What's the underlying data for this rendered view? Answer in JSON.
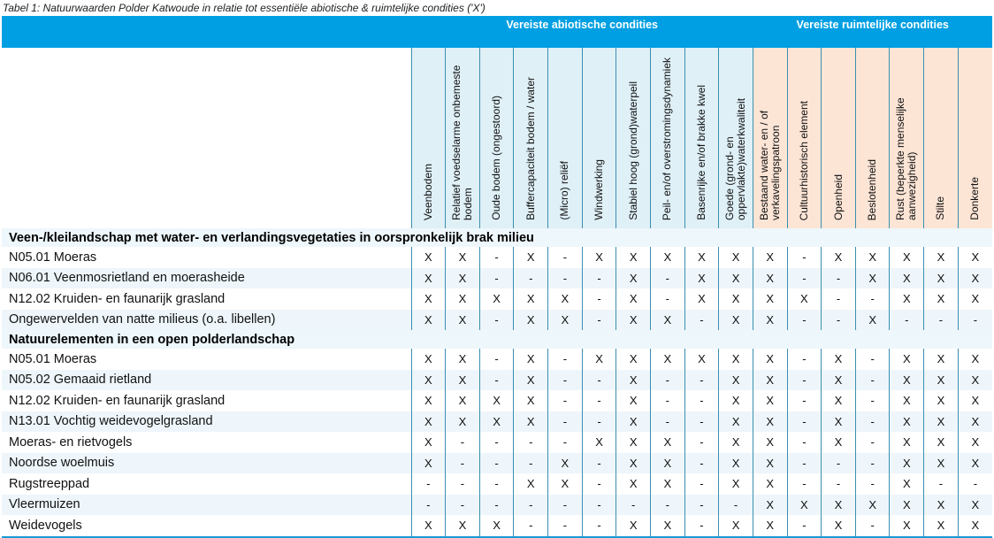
{
  "caption": "Tabel 1: Natuurwaarden Polder Katwoude in relatie tot essentiële abiotische & ruimtelijke condities ('X')",
  "colors": {
    "header_band": "#009fe3",
    "abiotic_header": "#dff0f7",
    "spatial_header": "#fde5d6",
    "row_alt": "#eef6fb"
  },
  "groups_header": {
    "abiotic": "Vereiste abiotische condities",
    "spatial": "Vereiste ruimtelijke condities"
  },
  "columns_abiotic": [
    "Veenbodem",
    "Relatief voedselarme onbemeste bodem",
    "Oude bodem (ongestoord)",
    "Buffercapaciteit bodem / water",
    "(Micro) reliëf",
    "Windwerking",
    "Stabiel hoog (grond)waterpeil",
    "Peil- en/of overstromingsdynamiek",
    "Basenrijke en/of brakke kwel",
    "Goede (grond- en oppervlakte)waterkwaliteit"
  ],
  "columns_spatial": [
    "Bestaand water- en / of verkavelingspatroon",
    "Cultuurhistorisch element",
    "Openheid",
    "Beslotenheid",
    "Rust (beperkte menselijke aanwezigheid)",
    "Stilte",
    "Donkerte"
  ],
  "sections": [
    {
      "title": "Veen-/kleilandschap met water- en verlandingsvegetaties in oorspronkelijk brak milieu",
      "rows": [
        {
          "label": "N05.01 Moeras",
          "values": [
            "X",
            "X",
            "-",
            "X",
            "-",
            "X",
            "X",
            "X",
            "X",
            "X",
            "X",
            "-",
            "X",
            "X",
            "X",
            "X",
            "X"
          ]
        },
        {
          "label": "N06.01 Veenmosrietland en moerasheide",
          "values": [
            "X",
            "X",
            "-",
            "-",
            "-",
            "-",
            "X",
            "-",
            "X",
            "X",
            "X",
            "-",
            "-",
            "X",
            "X",
            "X",
            "X"
          ]
        },
        {
          "label": "N12.02 Kruiden- en faunarijk grasland",
          "values": [
            "X",
            "X",
            "X",
            "X",
            "X",
            "-",
            "X",
            "-",
            "X",
            "X",
            "X",
            "X",
            "-",
            "-",
            "X",
            "X",
            "X"
          ]
        },
        {
          "label": "Ongewervelden van natte milieus (o.a. libellen)",
          "values": [
            "X",
            "X",
            "-",
            "X",
            "X",
            "-",
            "X",
            "X",
            "-",
            "X",
            "X",
            "-",
            "-",
            "X",
            "-",
            "-",
            "-"
          ]
        }
      ]
    },
    {
      "title": "Natuurelementen in een open polderlandschap",
      "rows": [
        {
          "label": "N05.01 Moeras",
          "values": [
            "X",
            "X",
            "-",
            "X",
            "-",
            "X",
            "X",
            "X",
            "X",
            "X",
            "X",
            "-",
            "X",
            "-",
            "X",
            "X",
            "X"
          ]
        },
        {
          "label": "N05.02 Gemaaid rietland",
          "values": [
            "X",
            "X",
            "-",
            "X",
            "-",
            "-",
            "X",
            "-",
            "-",
            "X",
            "X",
            "-",
            "X",
            "-",
            "X",
            "X",
            "X"
          ]
        },
        {
          "label": "N12.02 Kruiden- en faunarijk grasland",
          "values": [
            "X",
            "X",
            "X",
            "X",
            "-",
            "-",
            "X",
            "-",
            "-",
            "X",
            "X",
            "-",
            "X",
            "-",
            "X",
            "X",
            "X"
          ]
        },
        {
          "label": "N13.01 Vochtig weidevogelgrasland",
          "values": [
            "X",
            "X",
            "X",
            "X",
            "-",
            "-",
            "X",
            "-",
            "-",
            "X",
            "X",
            "-",
            "X",
            "-",
            "X",
            "X",
            "X"
          ]
        },
        {
          "label": "Moeras- en rietvogels",
          "values": [
            "X",
            "-",
            "-",
            "-",
            "-",
            "X",
            "X",
            "X",
            "-",
            "X",
            "X",
            "-",
            "X",
            "-",
            "X",
            "X",
            "X"
          ]
        },
        {
          "label": "Noordse woelmuis",
          "values": [
            "X",
            "-",
            "-",
            "-",
            "X",
            "-",
            "X",
            "X",
            "-",
            "X",
            "X",
            "-",
            "-",
            "-",
            "X",
            "X",
            "X"
          ]
        },
        {
          "label": "Rugstreeppad",
          "values": [
            "-",
            "-",
            "-",
            "X",
            "X",
            "-",
            "X",
            "X",
            "-",
            "X",
            "X",
            "-",
            "-",
            "-",
            "X",
            "-",
            "-"
          ]
        },
        {
          "label": "Vleermuizen",
          "values": [
            "-",
            "-",
            "-",
            "-",
            "-",
            "-",
            "-",
            "-",
            "-",
            "-",
            "X",
            "X",
            "X",
            "X",
            "X",
            "X",
            "X"
          ]
        },
        {
          "label": "Weidevogels",
          "values": [
            "X",
            "X",
            "X",
            "-",
            "-",
            "-",
            "X",
            "X",
            "-",
            "X",
            "X",
            "-",
            "X",
            "-",
            "X",
            "X",
            "X"
          ]
        }
      ]
    }
  ]
}
